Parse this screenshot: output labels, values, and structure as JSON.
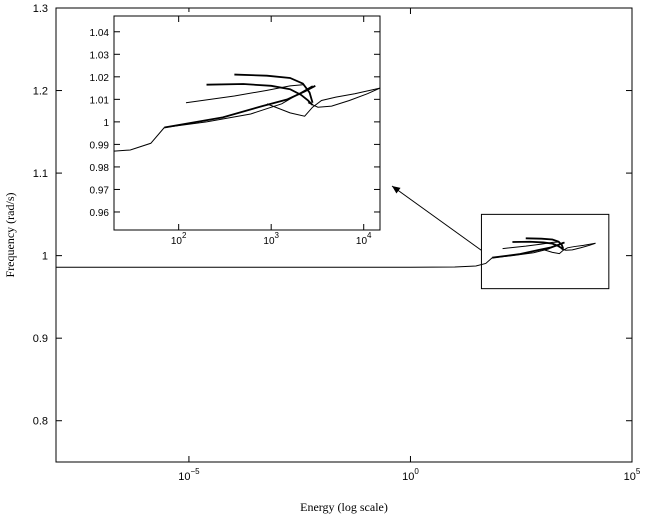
{
  "chart_data": [
    {
      "id": "main",
      "type": "line",
      "title": "",
      "xlabel": "Energy (log scale)",
      "ylabel": "Frequency (rad/s)",
      "xscale": "log",
      "xlim": [
        1e-08,
        100000.0
      ],
      "ylim": [
        0.75,
        1.3
      ],
      "x_ticks": [
        {
          "base": "10",
          "exp": "−5",
          "value": 1e-05
        },
        {
          "base": "10",
          "exp": "0",
          "value": 1
        },
        {
          "base": "10",
          "exp": "5",
          "value": 100000.0
        }
      ],
      "y_ticks": [
        "0.8",
        "0.9",
        "1",
        "1.1",
        "1.2",
        "1.3"
      ],
      "y_tick_values": [
        0.8,
        0.9,
        1.0,
        1.1,
        1.2,
        1.3
      ],
      "grid": false,
      "series": [
        {
          "values": [
            [
              1e-08,
              0.986
            ],
            [
              0.0001,
              0.986
            ],
            [
              0.01,
              0.986
            ],
            [
              1.0,
              0.986
            ],
            [
              10.0,
              0.9862
            ],
            [
              30.0,
              0.9875
            ],
            [
              50.0,
              0.9905
            ],
            [
              70.0,
              0.9975
            ]
          ]
        },
        {
          "values": [
            [
              70.0,
              0.9975
            ],
            [
              300.0,
              1.002
            ],
            [
              800.0,
              1.007
            ],
            [
              1500.0,
              1.01
            ],
            [
              2300.0,
              1.0135
            ],
            [
              3000.0,
              1.016
            ]
          ]
        },
        {
          "values": [
            [
              70.0,
              0.9975
            ],
            [
              200.0,
              1.0
            ],
            [
              600.0,
              1.0035
            ],
            [
              1300.0,
              1.008
            ],
            [
              2000.0,
              1.0125
            ],
            [
              2800.0,
              1.016
            ]
          ]
        },
        {
          "values": [
            [
              200.0,
              1.0165
            ],
            [
              500.0,
              1.0168
            ],
            [
              1000.0,
              1.016
            ],
            [
              1600.0,
              1.0145
            ],
            [
              2100.0,
              1.012
            ],
            [
              2500.0,
              1.0095
            ],
            [
              2800.0,
              1.0075
            ]
          ]
        },
        {
          "values": [
            [
              120.0,
              1.0085
            ],
            [
              400.0,
              1.0115
            ],
            [
              900.0,
              1.014
            ],
            [
              1600.0,
              1.016
            ],
            [
              2200.0,
              1.0165
            ]
          ]
        },
        {
          "values": [
            [
              400.0,
              1.021
            ],
            [
              900.0,
              1.0205
            ],
            [
              1600.0,
              1.0195
            ],
            [
              2200.0,
              1.017
            ],
            [
              2600.0,
              1.013
            ],
            [
              2800.0,
              1.0085
            ]
          ]
        },
        {
          "values": [
            [
              900.0,
              1.008
            ],
            [
              1600.0,
              1.004
            ],
            [
              2300.0,
              1.0025
            ],
            [
              2800.0,
              1.0065
            ],
            [
              3500.0,
              1.0095
            ],
            [
              5000.0,
              1.011
            ],
            [
              8000.0,
              1.0125
            ],
            [
              15000.0,
              1.015
            ]
          ]
        },
        {
          "values": [
            [
              2500.0,
              1.0085
            ],
            [
              3200.0,
              1.0065
            ],
            [
              4500.0,
              1.007
            ],
            [
              7000.0,
              1.0095
            ],
            [
              11000.0,
              1.0125
            ],
            [
              15000.0,
              1.015
            ]
          ]
        }
      ]
    },
    {
      "id": "inset",
      "type": "line",
      "title": "",
      "xlabel": "",
      "ylabel": "",
      "xscale": "log",
      "xlim": [
        20,
        15000.0
      ],
      "ylim": [
        0.952,
        1.047
      ],
      "x_ticks": [
        {
          "base": "10",
          "exp": "2",
          "value": 100
        },
        {
          "base": "10",
          "exp": "3",
          "value": 1000
        },
        {
          "base": "10",
          "exp": "4",
          "value": 10000
        }
      ],
      "y_ticks": [
        "0.96",
        "0.97",
        "0.98",
        "0.99",
        "1",
        "1.01",
        "1.02",
        "1.03",
        "1.04"
      ],
      "y_tick_values": [
        0.96,
        0.97,
        0.98,
        0.99,
        1.0,
        1.01,
        1.02,
        1.03,
        1.04
      ],
      "grid": false,
      "zoom_of": {
        "xlim": [
          40,
          30000.0
        ],
        "ylim": [
          0.96,
          1.05
        ]
      }
    }
  ]
}
